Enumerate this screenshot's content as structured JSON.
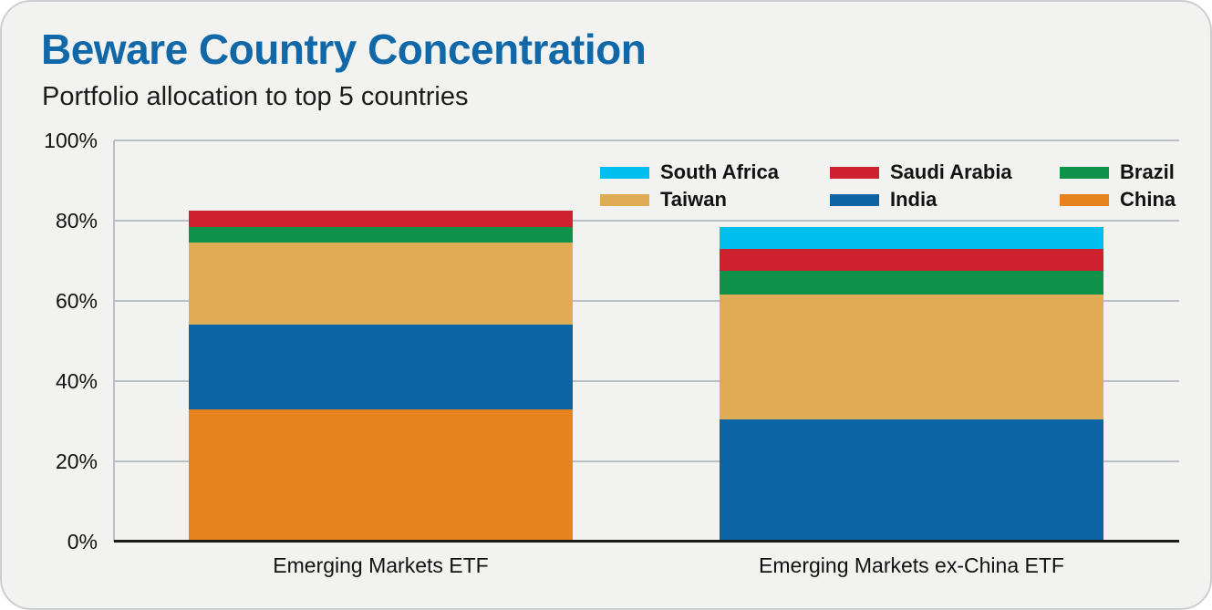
{
  "chart_data": {
    "type": "bar",
    "stacked": true,
    "title": "Beware Country Concentration",
    "subtitle": "Portfolio allocation to top 5 countries",
    "categories": [
      "Emerging Markets ETF",
      "Emerging Markets ex-China ETF"
    ],
    "series": [
      {
        "name": "South Africa",
        "color": "#00BEF0",
        "values": [
          0,
          5.5
        ]
      },
      {
        "name": "Saudi Arabia",
        "color": "#CE2130",
        "values": [
          4,
          5.5
        ]
      },
      {
        "name": "Brazil",
        "color": "#0E9249",
        "values": [
          4,
          6
        ]
      },
      {
        "name": "Taiwan",
        "color": "#DFAC55",
        "values": [
          20.5,
          31
        ]
      },
      {
        "name": "India",
        "color": "#0B64A4",
        "values": [
          21,
          30.5
        ]
      },
      {
        "name": "China",
        "color": "#E8821E",
        "values": [
          33,
          0
        ]
      }
    ],
    "stack_order_bottom_to_top": [
      "China",
      "India",
      "Taiwan",
      "Brazil",
      "Saudi Arabia",
      "South Africa"
    ],
    "stack_totals_pct": [
      82.5,
      78.5
    ],
    "xlabel": "",
    "ylabel": "",
    "ylim": [
      0,
      100
    ],
    "yticks": [
      {
        "value": 0,
        "label": "0%"
      },
      {
        "value": 20,
        "label": "20%"
      },
      {
        "value": 40,
        "label": "40%"
      },
      {
        "value": 60,
        "label": "60%"
      },
      {
        "value": 80,
        "label": "80%"
      },
      {
        "value": 100,
        "label": "100%"
      }
    ],
    "grid": "horizontal",
    "legend_position": "top-right",
    "legend_layout_rows": [
      [
        "South Africa",
        "Saudi Arabia",
        "Brazil"
      ],
      [
        "Taiwan",
        "India",
        "China"
      ]
    ]
  },
  "colors": {
    "title_blue": "#1068A8",
    "text": "#1A1A1A",
    "gridline": "#B9BDC4",
    "axis": "#1A1A1A",
    "card_background": "#F2F2F1"
  }
}
